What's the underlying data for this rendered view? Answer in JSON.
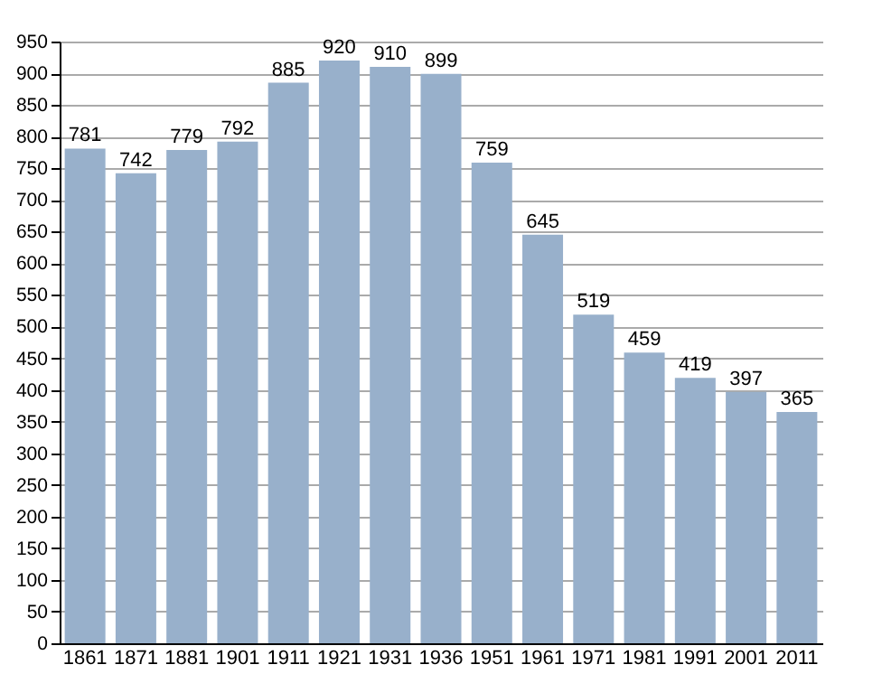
{
  "chart_data": {
    "type": "bar",
    "categories": [
      "1861",
      "1871",
      "1881",
      "1901",
      "1911",
      "1921",
      "1931",
      "1936",
      "1951",
      "1961",
      "1971",
      "1981",
      "1991",
      "2001",
      "2011"
    ],
    "values": [
      781,
      742,
      779,
      792,
      885,
      920,
      910,
      899,
      759,
      645,
      519,
      459,
      419,
      397,
      365
    ],
    "color": "#98b0cb",
    "ylim": [
      0,
      950
    ],
    "yticks": [
      0,
      50,
      100,
      150,
      200,
      250,
      300,
      350,
      400,
      450,
      500,
      550,
      600,
      650,
      700,
      750,
      800,
      850,
      900,
      950
    ],
    "grid": "y",
    "data_labels": true
  }
}
